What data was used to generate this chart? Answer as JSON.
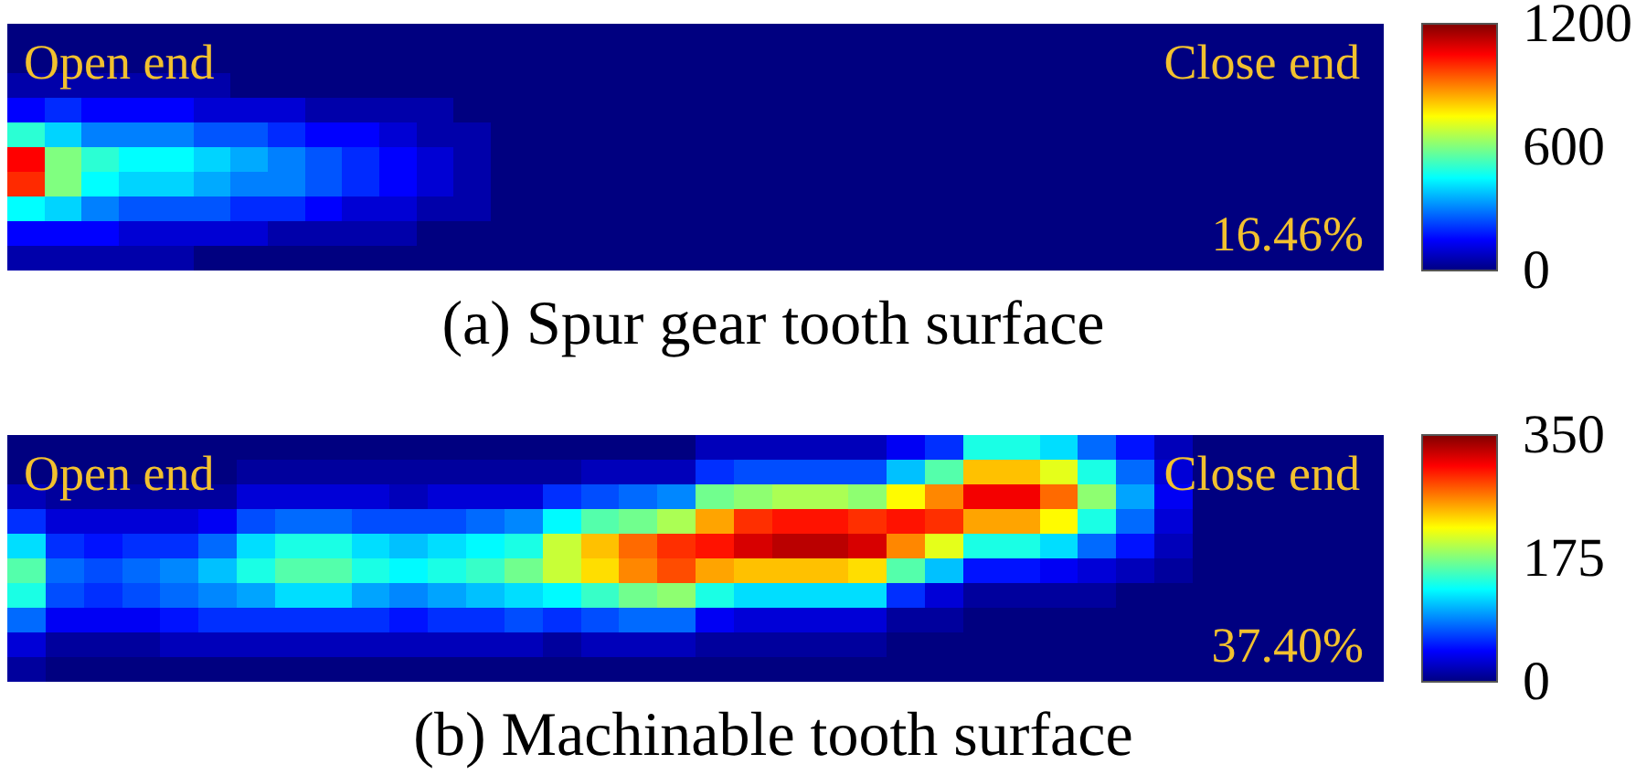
{
  "chart_data": [
    {
      "type": "heatmap",
      "title": "(a) Spur gear tooth surface",
      "annotations": [
        "Open end",
        "Close end",
        "16.46%"
      ],
      "clim": [
        0,
        1200
      ],
      "cticks": [
        0,
        600,
        1200
      ],
      "categories": [
        null,
        null,
        null,
        null,
        null,
        null,
        null,
        null,
        null,
        null,
        null,
        null,
        null,
        null,
        null,
        null,
        null,
        null,
        null,
        null,
        null,
        null,
        null,
        null,
        null,
        null,
        null,
        null,
        null,
        null,
        null,
        null,
        null,
        null,
        null,
        null,
        null
      ],
      "y_categories": [
        null,
        null,
        null,
        null,
        null,
        null,
        null,
        null,
        null,
        null
      ],
      "cells": [
        [
          0,
          0,
          0,
          0,
          0,
          0,
          0,
          0,
          0,
          0,
          0,
          0,
          0,
          0,
          0,
          0,
          0,
          0,
          0,
          0,
          0,
          0,
          0,
          0,
          0,
          0,
          0,
          0,
          0,
          0,
          0,
          0,
          0,
          0,
          0,
          0,
          0
        ],
        [
          0,
          0,
          0,
          0,
          0,
          0,
          0,
          0,
          0,
          0,
          0,
          0,
          0,
          0,
          0,
          0,
          0,
          0,
          0,
          0,
          0,
          0,
          0,
          0,
          0,
          0,
          0,
          0,
          0,
          0,
          0,
          0,
          0,
          0,
          0,
          0,
          0
        ],
        [
          50,
          50,
          50,
          50,
          50,
          50,
          0,
          0,
          0,
          0,
          0,
          0,
          0,
          0,
          0,
          0,
          0,
          0,
          0,
          0,
          0,
          0,
          0,
          0,
          0,
          0,
          0,
          0,
          0,
          0,
          0,
          0,
          0,
          0,
          0,
          0,
          0
        ],
        [
          150,
          200,
          150,
          150,
          150,
          100,
          100,
          100,
          50,
          50,
          50,
          50,
          0,
          0,
          0,
          0,
          0,
          0,
          0,
          0,
          0,
          0,
          0,
          0,
          0,
          0,
          0,
          0,
          0,
          0,
          0,
          0,
          0,
          0,
          0,
          0,
          0
        ],
        [
          500,
          400,
          300,
          300,
          300,
          250,
          250,
          200,
          150,
          150,
          100,
          50,
          50,
          0,
          0,
          0,
          0,
          0,
          0,
          0,
          0,
          0,
          0,
          0,
          0,
          0,
          0,
          0,
          0,
          0,
          0,
          0,
          0,
          0,
          0,
          0,
          0
        ],
        [
          1050,
          600,
          500,
          450,
          450,
          400,
          350,
          300,
          250,
          200,
          150,
          100,
          50,
          0,
          0,
          0,
          0,
          0,
          0,
          0,
          0,
          0,
          0,
          0,
          0,
          0,
          0,
          0,
          0,
          0,
          0,
          0,
          0,
          0,
          0,
          0,
          0
        ],
        [
          1000,
          600,
          450,
          400,
          400,
          350,
          300,
          300,
          250,
          200,
          150,
          100,
          50,
          0,
          0,
          0,
          0,
          0,
          0,
          0,
          0,
          0,
          0,
          0,
          0,
          0,
          0,
          0,
          0,
          0,
          0,
          0,
          0,
          0,
          0,
          0,
          0
        ],
        [
          450,
          400,
          300,
          250,
          250,
          250,
          200,
          200,
          150,
          100,
          100,
          50,
          50,
          0,
          0,
          0,
          0,
          0,
          0,
          0,
          0,
          0,
          0,
          0,
          0,
          0,
          0,
          0,
          0,
          0,
          0,
          0,
          0,
          0,
          0,
          0,
          0
        ],
        [
          150,
          150,
          150,
          100,
          100,
          100,
          100,
          50,
          50,
          50,
          50,
          0,
          0,
          0,
          0,
          0,
          0,
          0,
          0,
          0,
          0,
          0,
          0,
          0,
          0,
          0,
          0,
          0,
          0,
          0,
          0,
          0,
          0,
          0,
          0,
          0,
          0
        ],
        [
          50,
          50,
          50,
          50,
          50,
          0,
          0,
          0,
          0,
          0,
          0,
          0,
          0,
          0,
          0,
          0,
          0,
          0,
          0,
          0,
          0,
          0,
          0,
          0,
          0,
          0,
          0,
          0,
          0,
          0,
          0,
          0,
          0,
          0,
          0,
          0,
          0
        ]
      ]
    },
    {
      "type": "heatmap",
      "title": "(b) Machinable tooth surface",
      "annotations": [
        "Open end",
        "Close end",
        "37.40%"
      ],
      "clim": [
        0,
        350
      ],
      "cticks": [
        0,
        175,
        350
      ],
      "categories": [
        null,
        null,
        null,
        null,
        null,
        null,
        null,
        null,
        null,
        null,
        null,
        null,
        null,
        null,
        null,
        null,
        null,
        null,
        null,
        null,
        null,
        null,
        null,
        null,
        null,
        null,
        null,
        null,
        null,
        null,
        null,
        null,
        null,
        null,
        null,
        null
      ],
      "y_categories": [
        null,
        null,
        null,
        null,
        null,
        null,
        null,
        null,
        null,
        null
      ],
      "cells": [
        [
          0,
          0,
          0,
          0,
          0,
          0,
          0,
          0,
          0,
          0,
          0,
          0,
          0,
          0,
          0,
          0,
          0,
          0,
          20,
          20,
          20,
          20,
          20,
          40,
          60,
          140,
          140,
          120,
          80,
          50,
          20,
          0,
          0,
          0,
          0,
          0
        ],
        [
          0,
          0,
          0,
          0,
          0,
          0,
          10,
          10,
          10,
          10,
          10,
          10,
          10,
          10,
          10,
          20,
          20,
          20,
          60,
          70,
          70,
          70,
          70,
          110,
          160,
          240,
          240,
          210,
          140,
          80,
          30,
          0,
          0,
          0,
          0,
          0
        ],
        [
          20,
          10,
          10,
          10,
          10,
          10,
          30,
          30,
          30,
          30,
          20,
          30,
          30,
          30,
          60,
          70,
          80,
          90,
          170,
          180,
          190,
          190,
          180,
          220,
          260,
          310,
          310,
          270,
          180,
          100,
          40,
          0,
          0,
          0,
          0,
          0
        ],
        [
          60,
          30,
          30,
          30,
          30,
          40,
          70,
          80,
          80,
          70,
          70,
          70,
          80,
          90,
          130,
          160,
          170,
          190,
          250,
          290,
          300,
          300,
          290,
          300,
          290,
          250,
          250,
          220,
          140,
          80,
          30,
          0,
          0,
          0,
          0,
          0
        ],
        [
          120,
          60,
          50,
          60,
          60,
          80,
          120,
          140,
          140,
          120,
          110,
          120,
          130,
          140,
          200,
          240,
          270,
          290,
          300,
          320,
          330,
          330,
          320,
          260,
          210,
          140,
          140,
          120,
          80,
          50,
          20,
          0,
          0,
          0,
          0,
          0
        ],
        [
          160,
          80,
          70,
          80,
          90,
          110,
          140,
          160,
          160,
          140,
          130,
          140,
          150,
          170,
          200,
          230,
          260,
          280,
          250,
          240,
          240,
          240,
          230,
          160,
          110,
          50,
          50,
          40,
          30,
          20,
          10,
          0,
          0,
          0,
          0,
          0
        ],
        [
          140,
          70,
          60,
          70,
          80,
          90,
          100,
          120,
          120,
          100,
          90,
          100,
          110,
          120,
          130,
          150,
          170,
          180,
          140,
          120,
          120,
          120,
          120,
          60,
          30,
          10,
          10,
          10,
          10,
          0,
          0,
          0,
          0,
          0,
          0,
          0
        ],
        [
          80,
          40,
          40,
          40,
          50,
          60,
          60,
          60,
          60,
          60,
          50,
          60,
          60,
          70,
          60,
          70,
          80,
          80,
          40,
          30,
          30,
          30,
          30,
          10,
          10,
          0,
          0,
          0,
          0,
          0,
          0,
          0,
          0,
          0,
          0,
          0
        ],
        [
          30,
          10,
          10,
          10,
          20,
          20,
          20,
          20,
          20,
          20,
          20,
          20,
          20,
          20,
          10,
          20,
          20,
          20,
          10,
          10,
          10,
          10,
          10,
          0,
          0,
          0,
          0,
          0,
          0,
          0,
          0,
          0,
          0,
          0,
          0,
          0
        ],
        [
          10,
          0,
          0,
          0,
          0,
          0,
          0,
          0,
          0,
          0,
          0,
          0,
          0,
          0,
          0,
          0,
          0,
          0,
          0,
          0,
          0,
          0,
          0,
          0,
          0,
          0,
          0,
          0,
          0,
          0,
          0,
          0,
          0,
          0,
          0,
          0
        ]
      ]
    }
  ]
}
